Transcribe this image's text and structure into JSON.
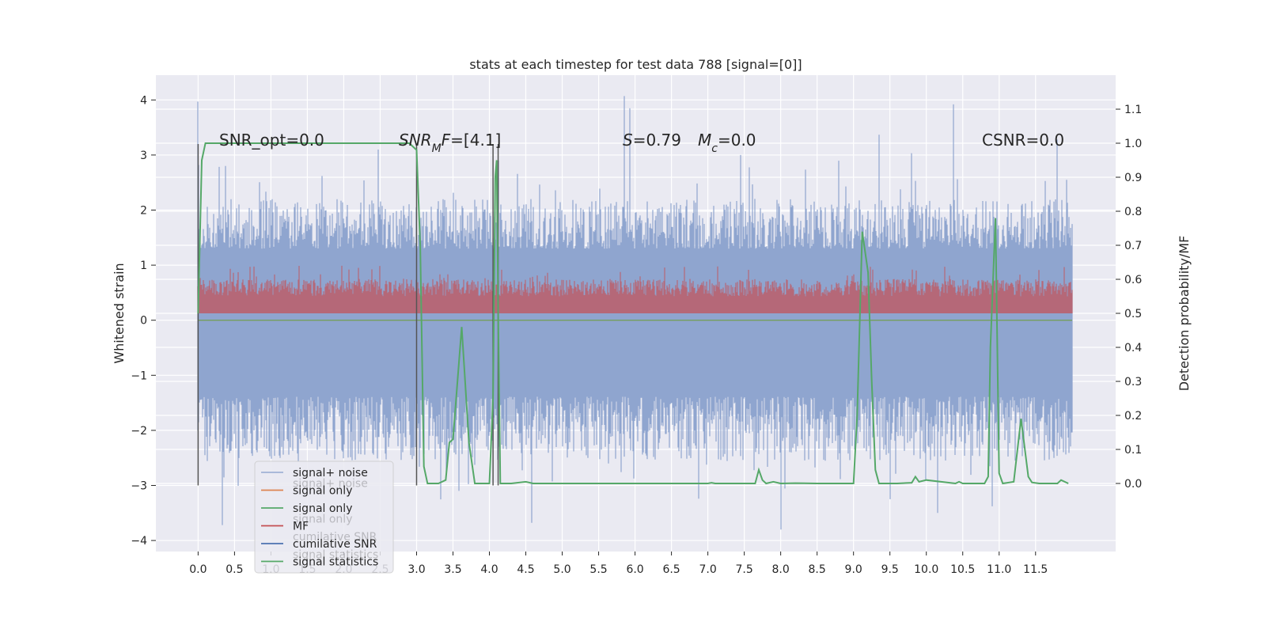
{
  "chart_data": {
    "type": "line",
    "title": "stats at each timestep for test data 788 [signal=[0]]",
    "ylabel_left": "Whitened strain",
    "ylabel_right": "Detection probability/MF",
    "xlim": [
      -0.58,
      12.6
    ],
    "ylim_left": [
      -4.2,
      4.45
    ],
    "ylim_right": [
      -0.2,
      1.2
    ],
    "x_ticks": [
      0.0,
      0.5,
      1.0,
      1.5,
      2.0,
      2.5,
      3.0,
      3.5,
      4.0,
      4.5,
      5.0,
      5.5,
      6.0,
      6.5,
      7.0,
      7.5,
      8.0,
      8.5,
      9.0,
      9.5,
      10.0,
      10.5,
      11.0,
      11.5
    ],
    "x_tick_labels": [
      "0.0",
      "0.5",
      "1.0",
      "1.5",
      "2.0",
      "2.5",
      "3.0",
      "3.5",
      "4.0",
      "4.5",
      "5.0",
      "5.5",
      "6.0",
      "6.5",
      "7.0",
      "7.5",
      "8.0",
      "8.5",
      "9.0",
      "9.5",
      "10.0",
      "10.5",
      "11.0",
      "11.5"
    ],
    "y_left_ticks": [
      4,
      3,
      2,
      1,
      0,
      -1,
      -2,
      -3,
      -4
    ],
    "y_left_tick_labels": [
      "4",
      "3",
      "2",
      "1",
      "0",
      "−1",
      "−2",
      "−3",
      "−4"
    ],
    "y_right_ticks": [
      1.1,
      1.0,
      0.9,
      0.8,
      0.7,
      0.6,
      0.5,
      0.4,
      0.3,
      0.2,
      0.1,
      0.0
    ],
    "y_right_tick_labels": [
      "1.1",
      "1.0",
      "0.9",
      "0.8",
      "0.7",
      "0.6",
      "0.5",
      "0.4",
      "0.3",
      "0.2",
      "0.1",
      "0.0"
    ],
    "grid": true,
    "legend_placement": "lower-left",
    "colors": {
      "background": "#eaeaf2",
      "grid": "#ffffff",
      "signal_noise": "#8fa5cf",
      "signal_only_orange": "#dd8452",
      "signal_only_green": "#55a868",
      "mf": "#c44e52",
      "cumulative_snr": "#4c72b0",
      "statistics": "#55a868",
      "markers": "#555555"
    },
    "series": [
      {
        "name": "signal+ noise",
        "axis": "left",
        "envelope": {
          "x_start": 0.0,
          "x_end": 12.0,
          "upper_typical": 2.0,
          "lower_typical": -2.3,
          "core_upper": 1.0,
          "core_lower": -1.0
        },
        "peaks": [
          {
            "x": 0.0,
            "y": 3.97
          },
          {
            "x": 0.38,
            "y": 2.8
          },
          {
            "x": 2.47,
            "y": 3.1
          },
          {
            "x": 4.13,
            "y": 2.9
          },
          {
            "x": 5.85,
            "y": 4.07
          },
          {
            "x": 5.93,
            "y": 3.85
          },
          {
            "x": 7.45,
            "y": 3.0
          },
          {
            "x": 9.35,
            "y": 3.37
          },
          {
            "x": 10.37,
            "y": 3.92
          },
          {
            "x": 11.8,
            "y": 3.28
          }
        ],
        "troughs": [
          {
            "x": 0.33,
            "y": -3.72
          },
          {
            "x": 3.58,
            "y": -3.1
          },
          {
            "x": 4.58,
            "y": -3.68
          },
          {
            "x": 8.0,
            "y": -3.8
          },
          {
            "x": 10.15,
            "y": -3.5
          },
          {
            "x": 10.9,
            "y": -3.38
          },
          {
            "x": 9.5,
            "y": -3.25
          }
        ]
      },
      {
        "name": "signal only",
        "axis": "left",
        "values": "flat at 0"
      },
      {
        "name": "signal only",
        "axis": "left",
        "values": "flat at 0"
      },
      {
        "name": "MF",
        "axis": "right",
        "envelope": {
          "x_start": 0.0,
          "x_end": 12.0,
          "lower": 0.5,
          "upper_typical": 0.6,
          "upper_peak": 0.64
        }
      },
      {
        "name": "cumilative SNR",
        "axis": "left",
        "values": "not visible"
      },
      {
        "name": "signal statistics",
        "axis": "right",
        "x": [
          0.0,
          0.05,
          0.1,
          0.5,
          1.0,
          1.5,
          2.0,
          2.5,
          2.9,
          3.0,
          3.05,
          3.1,
          3.15,
          3.2,
          3.3,
          3.4,
          3.45,
          3.5,
          3.62,
          3.72,
          3.8,
          4.0,
          4.05,
          4.08,
          4.1,
          4.12,
          4.15,
          4.2,
          4.3,
          4.5,
          4.6,
          5.0,
          6.0,
          7.0,
          7.05,
          7.1,
          7.5,
          7.65,
          7.7,
          7.75,
          7.8,
          7.9,
          8.0,
          8.2,
          8.5,
          9.0,
          9.05,
          9.12,
          9.2,
          9.25,
          9.3,
          9.35,
          9.45,
          9.6,
          9.8,
          9.85,
          9.9,
          10.0,
          10.4,
          10.45,
          10.5,
          10.8,
          10.85,
          10.88,
          10.95,
          11.0,
          11.05,
          11.2,
          11.3,
          11.4,
          11.45,
          11.55,
          11.6,
          11.8,
          11.85,
          11.95
        ],
        "values": [
          0.5,
          0.95,
          1.0,
          1.0,
          1.0,
          1.0,
          1.0,
          1.0,
          1.0,
          0.98,
          0.7,
          0.05,
          0.0,
          0.0,
          0.0,
          0.01,
          0.12,
          0.13,
          0.46,
          0.12,
          0.0,
          0.0,
          0.25,
          0.9,
          0.95,
          0.5,
          0.0,
          0.0,
          0.0,
          0.005,
          0.0,
          0.0,
          0.0,
          0.0,
          0.002,
          0.0,
          0.0,
          0.0,
          0.04,
          0.01,
          0.0,
          0.005,
          0.0,
          0.001,
          0.0,
          0.0,
          0.2,
          0.74,
          0.62,
          0.3,
          0.04,
          0.0,
          0.0,
          0.0,
          0.002,
          0.02,
          0.005,
          0.01,
          0.0,
          0.005,
          0.0,
          0.0,
          0.02,
          0.4,
          0.78,
          0.03,
          0.0,
          0.005,
          0.19,
          0.02,
          0.003,
          0.0,
          0.0,
          0.0,
          0.01,
          0.0
        ]
      }
    ],
    "vertical_markers_x": [
      0.0,
      3.0,
      4.05,
      4.12
    ],
    "vertical_markers_range_left": [
      -3.0,
      3.2
    ],
    "annotations": {
      "snr_opt": "SNR_opt=0.0",
      "snr_mf_italic_1": "SNR",
      "snr_mf_sub": "M",
      "snr_mf_italic_2": "F",
      "snr_mf_rest": "=[4.1]",
      "s_italic": "S",
      "s_rest": "=0.79",
      "mc_italic": "M",
      "mc_sub": "c",
      "mc_rest": "=0.0",
      "csnr": "CSNR=0.0"
    },
    "legend": {
      "entries": [
        {
          "label": "signal+ noise",
          "color": "#8fa5cf"
        },
        {
          "label": "signal only",
          "color": "#dd8452"
        },
        {
          "label": "signal only",
          "color": "#55a868"
        },
        {
          "label": "MF",
          "color": "#c44e52"
        },
        {
          "label": "cumilative SNR",
          "color": "#4c72b0"
        },
        {
          "label": "signal statistics",
          "color": "#55a868"
        }
      ],
      "ghost_entries": [
        {
          "label": "signal+ noise",
          "after_index": 0
        },
        {
          "label": "signal only",
          "after_index": 2
        },
        {
          "label": "cumilative SNR",
          "after_index": 3
        },
        {
          "label": "signal statistics",
          "after_index": 4
        }
      ]
    }
  }
}
